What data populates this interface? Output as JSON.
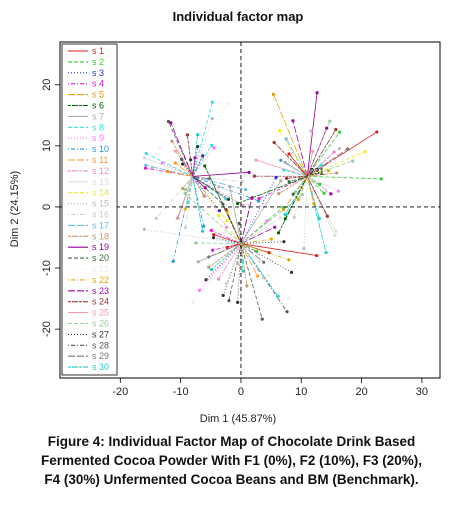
{
  "chart_data": {
    "type": "scatter",
    "title": "Individual factor map",
    "xlabel": "Dim 1 (45.87%)",
    "ylabel": "Dim 2 (24.15%)",
    "xlim": [
      -30,
      33
    ],
    "ylim": [
      -28,
      27
    ],
    "xticks": [
      -20,
      -10,
      0,
      10,
      20,
      30
    ],
    "yticks": [
      -20,
      -10,
      0,
      10,
      20
    ],
    "reference_lines": {
      "x": 0,
      "y": 0,
      "style": "dashed"
    },
    "legend_position": "top-left",
    "series": [
      {
        "name": "s 1",
        "color": "#e41a1c",
        "dash": "solid"
      },
      {
        "name": "s 2",
        "color": "#33cc33",
        "dash": "dashed"
      },
      {
        "name": "s 3",
        "color": "#2233cc",
        "dash": "dotted"
      },
      {
        "name": "s 4",
        "color": "#e016e0",
        "dash": "dotdash"
      },
      {
        "name": "s 5",
        "color": "#e6a000",
        "dash": "longdash"
      },
      {
        "name": "s 6",
        "color": "#006400",
        "dash": "twodash"
      },
      {
        "name": "s 7",
        "color": "#aaaaaa",
        "dash": "solid"
      },
      {
        "name": "s 8",
        "color": "#33dddd",
        "dash": "dashed"
      },
      {
        "name": "s 9",
        "color": "#ff77ff",
        "dash": "dotted"
      },
      {
        "name": "s 10",
        "color": "#2299dd",
        "dash": "dotdash"
      },
      {
        "name": "s 11",
        "color": "#ff9922",
        "dash": "longdash"
      },
      {
        "name": "s 12",
        "color": "#ee88cc",
        "dash": "twodash"
      },
      {
        "name": "s 13",
        "color": "#dddddd",
        "dash": "solid"
      },
      {
        "name": "s 14",
        "color": "#eeee22",
        "dash": "dashed"
      },
      {
        "name": "s 15",
        "color": "#bbbbbb",
        "dash": "dotted"
      },
      {
        "name": "s 16",
        "color": "#cccccc",
        "dash": "dotdash"
      },
      {
        "name": "s 17",
        "color": "#66bbee",
        "dash": "longdash"
      },
      {
        "name": "s 18",
        "color": "#cc9966",
        "dash": "twodash"
      },
      {
        "name": "s 19",
        "color": "#990099",
        "dash": "solid"
      },
      {
        "name": "s 20",
        "color": "#446644",
        "dash": "dashed"
      },
      {
        "name": "s 21",
        "color": "#eeeeee",
        "dash": "dotted"
      },
      {
        "name": "s 22",
        "color": "#ddaa00",
        "dash": "dotdash"
      },
      {
        "name": "s 23",
        "color": "#aa00aa",
        "dash": "longdash"
      },
      {
        "name": "s 24",
        "color": "#993333",
        "dash": "twodash"
      },
      {
        "name": "s 25",
        "color": "#ff99aa",
        "dash": "solid"
      },
      {
        "name": "s 26",
        "color": "#99cc99",
        "dash": "dashed"
      },
      {
        "name": "s 27",
        "color": "#333333",
        "dash": "dotted"
      },
      {
        "name": "s 28",
        "color": "#555555",
        "dash": "dotdash"
      },
      {
        "name": "s 29",
        "color": "#777777",
        "dash": "longdash"
      },
      {
        "name": "s 30",
        "color": "#22cccc",
        "dash": "twodash"
      }
    ],
    "centers": [
      {
        "label": "",
        "x": -8,
        "y": 5
      },
      {
        "label": "231",
        "x": 11,
        "y": 5
      },
      {
        "label": "",
        "x": 0,
        "y": -6
      }
    ]
  },
  "caption": {
    "lines": [
      "Figure 4: Individual Factor Map of Chocolate Drink Based",
      "Fermented Cocoa Powder With F1 (0%), F2 (10%), F3 (20%),",
      "F4 (30%) Unfermented Cocoa Beans and BM (Benchmark)."
    ]
  }
}
